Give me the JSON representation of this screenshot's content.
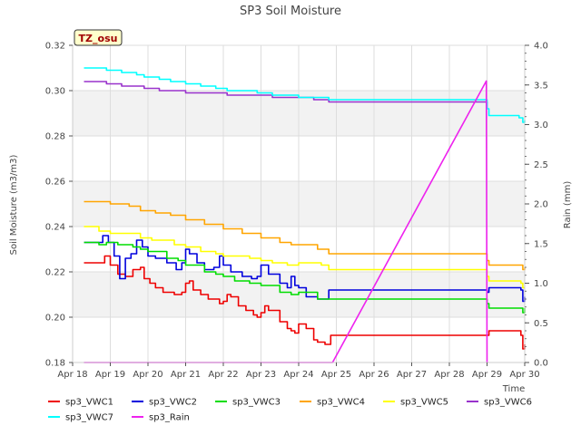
{
  "chart_data": {
    "type": "line",
    "title": "SP3 Soil Moisture",
    "xlabel": "Time",
    "ylabel": "Soil Moisture (m3/m3)",
    "y2label": "Rain (mm)",
    "badge": "TZ_osu",
    "xlim": [
      18,
      30
    ],
    "ylim": [
      0.18,
      0.32
    ],
    "y2lim": [
      0.0,
      4.0
    ],
    "x_ticks": [
      18,
      19,
      20,
      21,
      22,
      23,
      24,
      25,
      26,
      27,
      28,
      29,
      30
    ],
    "x_tick_labels": [
      "Apr 18",
      "Apr 19",
      "Apr 20",
      "Apr 21",
      "Apr 22",
      "Apr 23",
      "Apr 24",
      "Apr 25",
      "Apr 26",
      "Apr 27",
      "Apr 28",
      "Apr 29",
      "Apr 30"
    ],
    "y_ticks": [
      0.18,
      0.2,
      0.22,
      0.24,
      0.26,
      0.28,
      0.3,
      0.32
    ],
    "y_tick_labels": [
      "0.18",
      "0.20",
      "0.22",
      "0.24",
      "0.26",
      "0.28",
      "0.30",
      "0.32"
    ],
    "y2_ticks": [
      0.0,
      0.5,
      1.0,
      1.5,
      2.0,
      2.5,
      3.0,
      3.5,
      4.0
    ],
    "y2_tick_labels": [
      "0.0",
      "0.5",
      "1.0",
      "1.5",
      "2.0",
      "2.5",
      "3.0",
      "3.5",
      "4.0"
    ],
    "grid": true,
    "legend_position": "bottom",
    "series": [
      {
        "name": "sp3_VWC1",
        "color": "#ee0000",
        "axis": "left",
        "x": [
          18.3,
          18.7,
          18.85,
          19.0,
          19.2,
          19.4,
          19.6,
          19.8,
          19.9,
          20.05,
          20.2,
          20.4,
          20.7,
          20.9,
          21.0,
          21.1,
          21.2,
          21.4,
          21.6,
          21.9,
          22.0,
          22.1,
          22.2,
          22.4,
          22.6,
          22.8,
          22.9,
          23.0,
          23.1,
          23.2,
          23.5,
          23.7,
          23.8,
          23.9,
          24.0,
          24.2,
          24.4,
          24.5,
          24.7,
          24.8,
          24.85,
          29.0,
          29.05,
          29.9,
          29.95,
          30.0
        ],
        "y": [
          0.224,
          0.224,
          0.227,
          0.223,
          0.219,
          0.218,
          0.221,
          0.222,
          0.217,
          0.215,
          0.213,
          0.211,
          0.21,
          0.211,
          0.215,
          0.216,
          0.212,
          0.21,
          0.208,
          0.206,
          0.207,
          0.21,
          0.209,
          0.205,
          0.203,
          0.201,
          0.2,
          0.202,
          0.205,
          0.203,
          0.198,
          0.195,
          0.194,
          0.193,
          0.197,
          0.195,
          0.19,
          0.189,
          0.188,
          0.188,
          0.192,
          0.192,
          0.194,
          0.192,
          0.186,
          0.188
        ]
      },
      {
        "name": "sp3_VWC2",
        "color": "#0000dd",
        "axis": "left",
        "x": [
          18.3,
          18.6,
          18.8,
          18.95,
          19.1,
          19.25,
          19.4,
          19.55,
          19.7,
          19.85,
          20.0,
          20.2,
          20.5,
          20.75,
          20.9,
          21.0,
          21.1,
          21.3,
          21.5,
          21.75,
          21.9,
          22.0,
          22.2,
          22.5,
          22.75,
          22.9,
          23.0,
          23.2,
          23.5,
          23.7,
          23.8,
          23.9,
          24.0,
          24.2,
          24.5,
          24.7,
          24.75,
          24.8,
          24.85,
          29.0,
          29.05,
          29.9,
          29.95,
          30.0
        ],
        "y": [
          0.233,
          0.233,
          0.236,
          0.233,
          0.227,
          0.217,
          0.226,
          0.228,
          0.234,
          0.231,
          0.227,
          0.226,
          0.224,
          0.221,
          0.224,
          0.23,
          0.228,
          0.224,
          0.221,
          0.222,
          0.227,
          0.223,
          0.22,
          0.218,
          0.217,
          0.218,
          0.223,
          0.219,
          0.215,
          0.213,
          0.218,
          0.214,
          0.213,
          0.209,
          0.208,
          0.208,
          0.208,
          0.212,
          0.212,
          0.211,
          0.213,
          0.212,
          0.207,
          0.209
        ]
      },
      {
        "name": "sp3_VWC3",
        "color": "#00dd00",
        "axis": "left",
        "x": [
          18.3,
          18.7,
          18.9,
          19.2,
          19.6,
          19.8,
          20.0,
          20.5,
          20.8,
          21.0,
          21.5,
          21.8,
          22.0,
          22.3,
          22.7,
          23.0,
          23.5,
          23.8,
          24.0,
          24.5,
          24.8,
          29.0,
          29.05,
          29.9,
          29.95,
          30.0
        ],
        "y": [
          0.233,
          0.232,
          0.233,
          0.232,
          0.231,
          0.23,
          0.229,
          0.226,
          0.225,
          0.223,
          0.22,
          0.219,
          0.218,
          0.216,
          0.215,
          0.214,
          0.211,
          0.21,
          0.211,
          0.208,
          0.208,
          0.206,
          0.204,
          0.204,
          0.202,
          0.204
        ]
      },
      {
        "name": "sp3_VWC4",
        "color": "#ffa500",
        "axis": "left",
        "x": [
          18.3,
          18.7,
          19.0,
          19.5,
          19.8,
          20.2,
          20.6,
          21.0,
          21.5,
          22.0,
          22.5,
          23.0,
          23.5,
          23.8,
          24.2,
          24.5,
          24.8,
          29.0,
          29.05,
          29.9,
          29.95,
          30.0
        ],
        "y": [
          0.251,
          0.251,
          0.25,
          0.249,
          0.247,
          0.246,
          0.245,
          0.243,
          0.241,
          0.239,
          0.237,
          0.235,
          0.233,
          0.232,
          0.232,
          0.23,
          0.228,
          0.225,
          0.223,
          0.223,
          0.221,
          0.222
        ]
      },
      {
        "name": "sp3_VWC5",
        "color": "#ffff00",
        "axis": "left",
        "x": [
          18.3,
          18.7,
          19.0,
          19.5,
          19.8,
          20.1,
          20.4,
          20.7,
          21.0,
          21.4,
          21.8,
          22.0,
          22.3,
          22.7,
          23.0,
          23.3,
          23.7,
          24.0,
          24.3,
          24.6,
          24.8,
          29.0,
          29.05,
          29.9,
          29.95,
          30.0
        ],
        "y": [
          0.24,
          0.238,
          0.237,
          0.237,
          0.235,
          0.234,
          0.234,
          0.232,
          0.231,
          0.229,
          0.228,
          0.227,
          0.227,
          0.226,
          0.225,
          0.224,
          0.223,
          0.224,
          0.224,
          0.223,
          0.221,
          0.218,
          0.216,
          0.215,
          0.213,
          0.213
        ]
      },
      {
        "name": "sp3_VWC6",
        "color": "#9932cc",
        "axis": "left",
        "x": [
          18.3,
          18.6,
          18.9,
          19.3,
          19.7,
          19.9,
          20.3,
          20.6,
          21.0,
          21.4,
          21.8,
          22.1,
          22.5,
          22.9,
          23.3,
          23.7,
          24.0,
          24.4,
          24.8,
          29.0
        ],
        "y": [
          0.304,
          0.304,
          0.303,
          0.302,
          0.302,
          0.301,
          0.3,
          0.3,
          0.299,
          0.299,
          0.299,
          0.298,
          0.298,
          0.298,
          0.297,
          0.297,
          0.297,
          0.296,
          0.295,
          0.292
        ]
      },
      {
        "name": "sp3_VWC7",
        "color": "#00ffff",
        "axis": "left",
        "x": [
          18.3,
          18.6,
          18.9,
          19.3,
          19.7,
          19.9,
          20.3,
          20.6,
          21.0,
          21.4,
          21.8,
          22.1,
          22.5,
          22.9,
          23.3,
          23.7,
          24.0,
          24.4,
          24.8,
          29.0,
          29.05,
          29.8,
          29.85,
          29.9,
          29.95,
          30.0
        ],
        "y": [
          0.31,
          0.31,
          0.309,
          0.308,
          0.307,
          0.306,
          0.305,
          0.304,
          0.303,
          0.302,
          0.301,
          0.3,
          0.3,
          0.299,
          0.298,
          0.298,
          0.297,
          0.297,
          0.296,
          0.292,
          0.289,
          0.289,
          0.288,
          0.288,
          0.286,
          0.287
        ]
      },
      {
        "name": "sp3_Rain",
        "color": "#ee22ee",
        "axis": "right",
        "x": [
          18.3,
          24.9,
          28.98,
          29.0,
          29.02
        ],
        "y": [
          0.0,
          0.0,
          3.55,
          0.0,
          0.0
        ]
      }
    ]
  }
}
